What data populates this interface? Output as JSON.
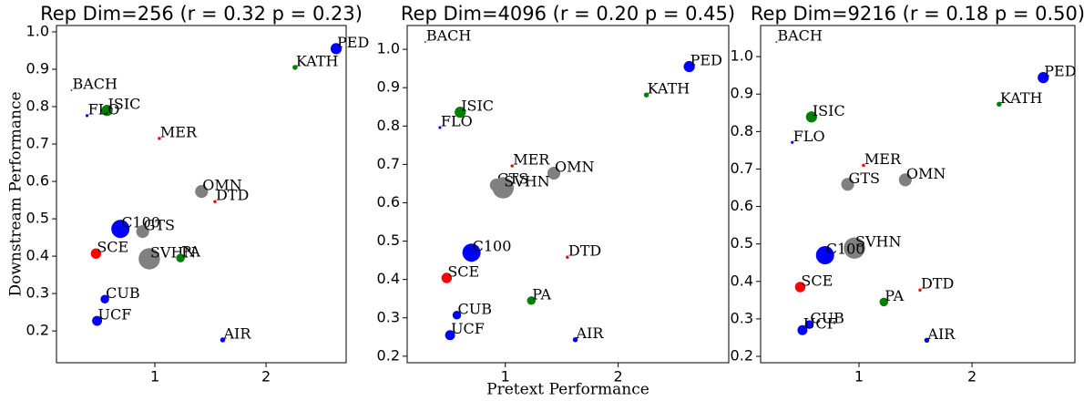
{
  "chart_data": [
    {
      "type": "scatter",
      "title": "Rep Dim=256 (r = 0.32 p = 0.23)",
      "ylabel": "Downstream Performance",
      "labels": [
        "PED",
        "KATH",
        "BACH",
        "ISIC",
        "FLO",
        "MER",
        "OMN",
        "DTD",
        "C100",
        "GTS",
        "SCE",
        "SVHN",
        "PA",
        "CUB",
        "UCF",
        "AIR"
      ],
      "x": [
        2.63,
        2.26,
        0.25,
        0.57,
        0.39,
        1.04,
        1.42,
        1.54,
        0.69,
        0.89,
        0.47,
        0.95,
        1.23,
        0.55,
        0.48,
        1.61
      ],
      "y": [
        0.955,
        0.905,
        0.844,
        0.79,
        0.776,
        0.715,
        0.573,
        0.546,
        0.473,
        0.466,
        0.407,
        0.393,
        0.395,
        0.285,
        0.227,
        0.176
      ],
      "sizes": [
        150,
        30,
        4,
        150,
        10,
        12,
        200,
        12,
        400,
        200,
        130,
        550,
        90,
        90,
        120,
        30
      ],
      "colors": [
        "#0000ff",
        "#008000",
        "#008000",
        "#008000",
        "#0000ff",
        "#ff0000",
        "#808080",
        "#ff0000",
        "#0000ff",
        "#808080",
        "#ff0000",
        "#808080",
        "#008000",
        "#0000ff",
        "#0000ff",
        "#0000ff"
      ],
      "xlim": [
        0.115,
        2.72
      ],
      "ylim": [
        0.115,
        1.017
      ],
      "xticks": [
        1,
        2
      ],
      "yticks": [
        0.2,
        0.3,
        0.4,
        0.5,
        0.6,
        0.7,
        0.8,
        0.9,
        {
          "value": 1.0,
          "label": "1.0"
        }
      ]
    },
    {
      "type": "scatter",
      "title": "Rep Dim=4096 (r = 0.20 p = 0.45)",
      "xlabel": "Pretext Performance",
      "labels": [
        "BACH",
        "PED",
        "KATH",
        "ISIC",
        "FLO",
        "MER",
        "OMN",
        "GTS",
        "SVHN",
        "DTD",
        "C100",
        "SCE",
        "PA",
        "CUB",
        "UCF",
        "AIR"
      ],
      "x": [
        0.29,
        2.63,
        2.25,
        0.6,
        0.42,
        1.06,
        1.43,
        0.92,
        0.98,
        1.55,
        0.7,
        0.48,
        1.23,
        0.57,
        0.51,
        1.62
      ],
      "y": [
        1.019,
        0.955,
        0.881,
        0.836,
        0.796,
        0.696,
        0.677,
        0.646,
        0.639,
        0.458,
        0.47,
        0.404,
        0.345,
        0.307,
        0.255,
        0.243
      ],
      "sizes": [
        4,
        150,
        30,
        150,
        10,
        12,
        200,
        200,
        550,
        12,
        400,
        130,
        90,
        90,
        120,
        30
      ],
      "colors": [
        "#008000",
        "#0000ff",
        "#008000",
        "#008000",
        "#0000ff",
        "#ff0000",
        "#808080",
        "#808080",
        "#808080",
        "#ff0000",
        "#0000ff",
        "#ff0000",
        "#008000",
        "#0000ff",
        "#0000ff",
        "#0000ff"
      ],
      "xlim": [
        0.13,
        2.98
      ],
      "ylim": [
        0.183,
        1.062
      ],
      "xticks": [
        1,
        2
      ],
      "yticks": [
        0.2,
        0.3,
        0.4,
        0.5,
        0.6,
        0.7,
        0.8,
        0.9,
        {
          "value": 1.0,
          "label": "1.0"
        }
      ]
    },
    {
      "type": "scatter",
      "title": "Rep Dim=9216 (r = 0.18 p = 0.50)",
      "labels": [
        "BACH",
        "PED",
        "KATH",
        "ISIC",
        "FLO",
        "MER",
        "OMN",
        "GTS",
        "SVHN",
        "C100",
        "SCE",
        "DTD",
        "PA",
        "CUB",
        "UCF",
        "AIR"
      ],
      "x": [
        0.27,
        2.63,
        2.24,
        0.58,
        0.41,
        1.04,
        1.41,
        0.9,
        0.96,
        0.7,
        0.48,
        1.54,
        1.22,
        0.56,
        0.5,
        1.6
      ],
      "y": [
        1.039,
        0.944,
        0.873,
        0.839,
        0.771,
        0.71,
        0.671,
        0.659,
        0.489,
        0.47,
        0.385,
        0.377,
        0.345,
        0.285,
        0.27,
        0.243
      ],
      "sizes": [
        4,
        150,
        30,
        150,
        10,
        12,
        200,
        200,
        550,
        400,
        130,
        12,
        90,
        90,
        120,
        30
      ],
      "colors": [
        "#008000",
        "#0000ff",
        "#008000",
        "#008000",
        "#0000ff",
        "#ff0000",
        "#808080",
        "#808080",
        "#808080",
        "#0000ff",
        "#ff0000",
        "#ff0000",
        "#008000",
        "#0000ff",
        "#0000ff",
        "#0000ff"
      ],
      "xlim": [
        0.13,
        2.91
      ],
      "ylim": [
        0.183,
        1.083
      ],
      "xticks": [
        1,
        2
      ],
      "yticks": [
        0.2,
        0.3,
        0.4,
        0.5,
        0.6,
        0.7,
        0.8,
        0.9,
        {
          "value": 1.0,
          "label": "1.0"
        }
      ]
    }
  ]
}
